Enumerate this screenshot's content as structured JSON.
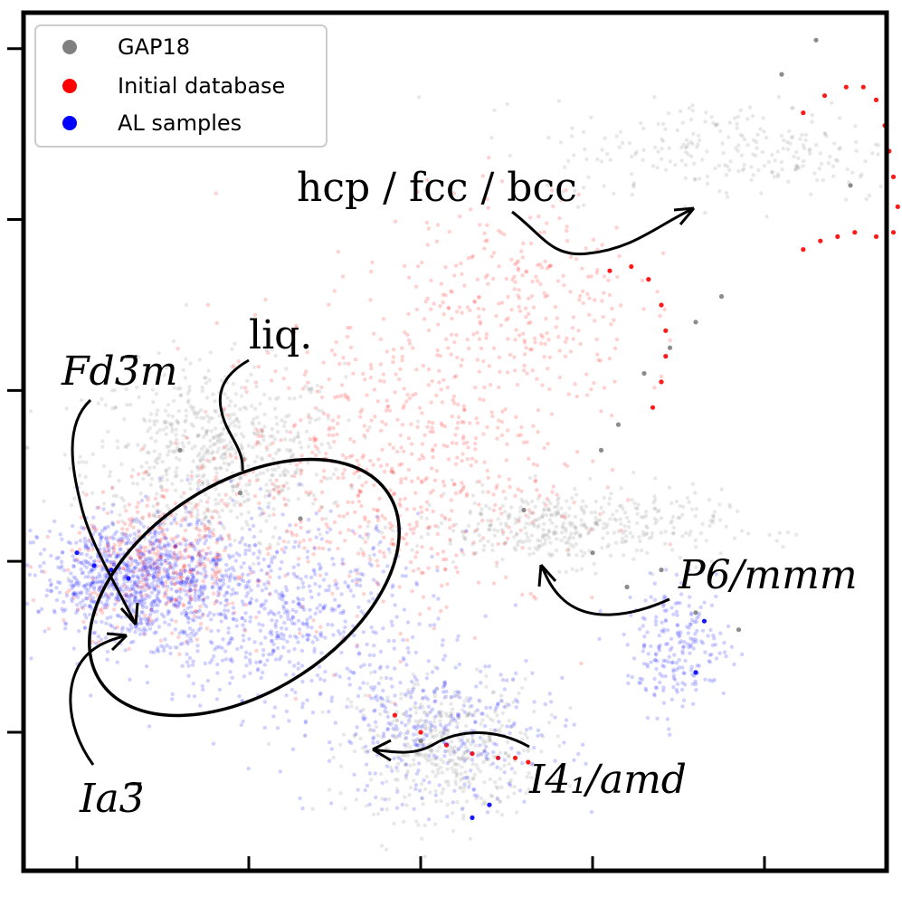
{
  "chart_data": {
    "type": "scatter",
    "title": "",
    "xlabel": "",
    "ylabel": "",
    "xlim": [
      0,
      10
    ],
    "ylim": [
      0,
      10
    ],
    "x_ticks": [
      0.6,
      2.6,
      4.6,
      6.6,
      8.6
    ],
    "y_ticks": [
      1.6,
      3.6,
      5.6,
      7.6,
      9.6
    ],
    "grid": false,
    "legend_position": "top-left",
    "legend": [
      {
        "label": "GAP18",
        "color": "#808080"
      },
      {
        "label": "Initial database",
        "color": "#ff0000"
      },
      {
        "label": "AL samples",
        "color": "#0000ff"
      }
    ],
    "series": [
      {
        "name": "GAP18",
        "color": "#808080",
        "clouds": [
          {
            "cx": 2.2,
            "cy": 4.8,
            "sx": 0.75,
            "sy": 0.55,
            "n": 700
          },
          {
            "cx": 4.9,
            "cy": 1.4,
            "sx": 0.55,
            "sy": 0.4,
            "n": 450
          },
          {
            "cx": 6.3,
            "cy": 4.0,
            "sx": 0.9,
            "sy": 0.22,
            "n": 420
          },
          {
            "cx": 8.3,
            "cy": 8.4,
            "sx": 1.1,
            "sy": 0.3,
            "n": 260
          }
        ],
        "x": [
          1.8,
          2.5,
          3.2,
          4.6,
          5.8,
          6.6,
          7.0,
          7.4,
          7.8,
          8.3,
          8.8,
          9.2,
          9.6,
          7.5,
          7.8,
          8.1,
          7.2,
          6.9,
          6.7
        ],
        "y": [
          4.9,
          4.4,
          4.1,
          1.5,
          4.2,
          3.7,
          3.3,
          3.5,
          3.0,
          2.8,
          9.3,
          9.7,
          8.0,
          6.1,
          6.4,
          6.7,
          5.8,
          5.2,
          4.9
        ]
      },
      {
        "name": "Initial database",
        "color": "#ff0000",
        "clouds": [
          {
            "cx": 4.2,
            "cy": 4.7,
            "sx": 1.0,
            "sy": 0.9,
            "n": 650
          },
          {
            "cx": 5.7,
            "cy": 6.6,
            "sx": 0.7,
            "sy": 0.7,
            "n": 300
          },
          {
            "cx": 1.6,
            "cy": 3.6,
            "sx": 0.55,
            "sy": 0.4,
            "n": 380
          }
        ],
        "x": [
          9.05,
          9.3,
          9.55,
          9.75,
          9.9,
          10.0,
          10.05,
          10.1,
          10.15,
          10.1,
          9.9,
          9.65,
          9.45,
          9.25,
          9.05,
          6.8,
          7.05,
          7.25,
          7.4,
          7.45,
          7.45,
          7.4,
          7.3,
          4.3,
          4.6,
          4.9,
          5.2,
          5.5,
          5.7,
          5.85
        ],
        "y": [
          8.85,
          9.05,
          9.15,
          9.15,
          9.0,
          8.7,
          8.4,
          8.1,
          7.75,
          7.45,
          7.4,
          7.45,
          7.4,
          7.35,
          7.25,
          7.0,
          7.05,
          6.9,
          6.6,
          6.3,
          6.0,
          5.7,
          5.4,
          1.8,
          1.6,
          1.45,
          1.35,
          1.3,
          1.3,
          1.25
        ]
      },
      {
        "name": "AL samples",
        "color": "#0000ff",
        "clouds": [
          {
            "cx": 1.3,
            "cy": 3.4,
            "sx": 0.55,
            "sy": 0.35,
            "n": 900
          },
          {
            "cx": 2.9,
            "cy": 3.0,
            "sx": 0.9,
            "sy": 0.55,
            "n": 650
          },
          {
            "cx": 4.8,
            "cy": 1.6,
            "sx": 0.75,
            "sy": 0.45,
            "n": 350
          },
          {
            "cx": 7.6,
            "cy": 2.6,
            "sx": 0.3,
            "sy": 0.35,
            "n": 220
          }
        ],
        "x": [
          0.6,
          0.8,
          1.0,
          1.2,
          5.2,
          5.4,
          7.8,
          7.9
        ],
        "y": [
          3.7,
          3.55,
          3.5,
          3.4,
          0.6,
          0.75,
          2.3,
          2.9
        ]
      }
    ],
    "annotations": [
      {
        "text": "hcp / fcc / bcc",
        "style": "upright"
      },
      {
        "text": "liq.",
        "style": "upright"
      },
      {
        "text": "Fd3̄m",
        "style": "italic"
      },
      {
        "text": "P6/mmm",
        "style": "italic"
      },
      {
        "text": "Ia3̄",
        "style": "italic"
      },
      {
        "text": "I4₁/amd",
        "style": "italic"
      }
    ]
  }
}
